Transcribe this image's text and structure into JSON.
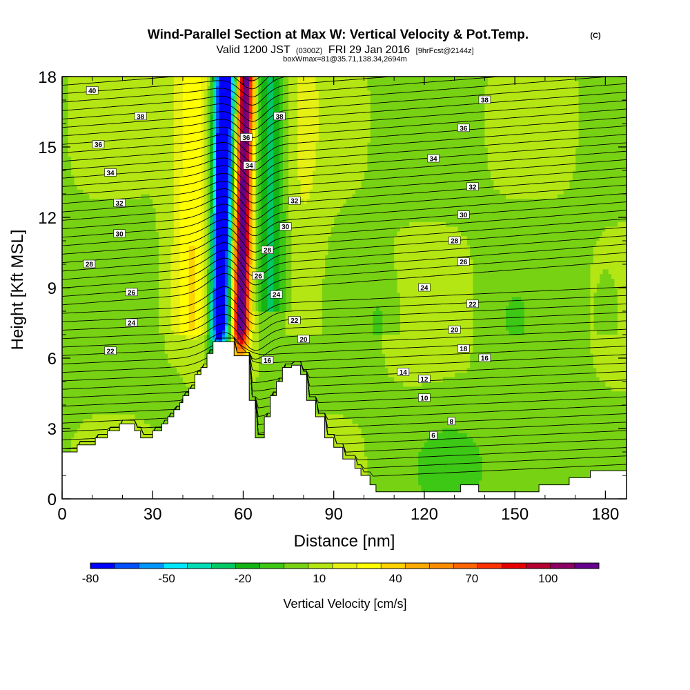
{
  "chart_data": {
    "type": "heatmap",
    "title": "Wind-Parallel Section at Max W: Vertical Velocity & Pot.Temp.",
    "title_mark": "(C)",
    "subtitle": {
      "prefix": "Valid 1200 JST",
      "utc": "(0300Z)",
      "date": "FRI 29 Jan 2016",
      "forecast": "[9hrFcst@2144z]"
    },
    "subtitle2": "boxWmax=81@35.71,138.34,2694m",
    "xlabel": "Distance [nm]",
    "ylabel": "Height [Kft MSL]",
    "xlim": [
      0,
      187
    ],
    "ylim": [
      0,
      18
    ],
    "x_ticks": [
      0,
      30,
      60,
      90,
      120,
      150,
      180
    ],
    "y_ticks": [
      0,
      3,
      6,
      9,
      12,
      15,
      18
    ],
    "colorbar": {
      "label": "Vertical Velocity [cm/s]",
      "ticks": [
        -80,
        -50,
        -20,
        10,
        40,
        70,
        100
      ],
      "min": -80,
      "max": 120,
      "colors": [
        "#0000ff",
        "#0050ff",
        "#0096ff",
        "#00e6ff",
        "#00dcb4",
        "#00c864",
        "#14b414",
        "#3cc814",
        "#78d214",
        "#b4e614",
        "#e6f014",
        "#ffff00",
        "#ffd200",
        "#ffaa00",
        "#ff8c00",
        "#ff6400",
        "#ff3200",
        "#e60000",
        "#b40032",
        "#8c0064",
        "#64008c"
      ]
    },
    "terrain_profile": [
      [
        0,
        2.0
      ],
      [
        5,
        2.3
      ],
      [
        11,
        2.6
      ],
      [
        15,
        2.9
      ],
      [
        19,
        3.2
      ],
      [
        24,
        2.9
      ],
      [
        26,
        2.6
      ],
      [
        30,
        2.9
      ],
      [
        33,
        3.2
      ],
      [
        35,
        3.5
      ],
      [
        37,
        3.8
      ],
      [
        39,
        4.1
      ],
      [
        40,
        4.4
      ],
      [
        42,
        4.7
      ],
      [
        44,
        5.3
      ],
      [
        46,
        5.6
      ],
      [
        48,
        6.2
      ],
      [
        50,
        6.7
      ],
      [
        55,
        6.7
      ],
      [
        57,
        6.1
      ],
      [
        60,
        6.1
      ],
      [
        62,
        4.2
      ],
      [
        64,
        2.6
      ],
      [
        67,
        3.5
      ],
      [
        69,
        4.4
      ],
      [
        71,
        5.0
      ],
      [
        73,
        5.6
      ],
      [
        76,
        5.7
      ],
      [
        79,
        5.3
      ],
      [
        81,
        4.2
      ],
      [
        84,
        3.5
      ],
      [
        87,
        2.6
      ],
      [
        90,
        2.2
      ],
      [
        93,
        1.7
      ],
      [
        97,
        1.3
      ],
      [
        99,
        1.0
      ],
      [
        102,
        0.6
      ],
      [
        104,
        0.3
      ],
      [
        110,
        0.3
      ],
      [
        120,
        0.3
      ],
      [
        130,
        0.3
      ],
      [
        132,
        0.6
      ],
      [
        136,
        0.6
      ],
      [
        138,
        0.3
      ],
      [
        145,
        0.3
      ],
      [
        155,
        0.3
      ],
      [
        158,
        0.6
      ],
      [
        165,
        0.6
      ],
      [
        168,
        0.9
      ],
      [
        175,
        1.2
      ],
      [
        187,
        1.2
      ]
    ],
    "wave": {
      "updraft_x": 59,
      "downdraft_x": 52,
      "peak_updraft": 81
    },
    "theta_contour_labels": [
      {
        "x": 10,
        "y": 17.4,
        "text": "40"
      },
      {
        "x": 26,
        "y": 16.3,
        "text": "38"
      },
      {
        "x": 72,
        "y": 16.3,
        "text": "38"
      },
      {
        "x": 140,
        "y": 17.0,
        "text": "38"
      },
      {
        "x": 12,
        "y": 15.1,
        "text": "36"
      },
      {
        "x": 61,
        "y": 15.4,
        "text": "36"
      },
      {
        "x": 133,
        "y": 15.8,
        "text": "36"
      },
      {
        "x": 16,
        "y": 13.9,
        "text": "34"
      },
      {
        "x": 62,
        "y": 14.2,
        "text": "34"
      },
      {
        "x": 123,
        "y": 14.5,
        "text": "34"
      },
      {
        "x": 19,
        "y": 12.6,
        "text": "32"
      },
      {
        "x": 77,
        "y": 12.7,
        "text": "32"
      },
      {
        "x": 136,
        "y": 13.3,
        "text": "32"
      },
      {
        "x": 19,
        "y": 11.3,
        "text": "30"
      },
      {
        "x": 74,
        "y": 11.6,
        "text": "30"
      },
      {
        "x": 133,
        "y": 12.1,
        "text": "30"
      },
      {
        "x": 9,
        "y": 10.0,
        "text": "28"
      },
      {
        "x": 68,
        "y": 10.6,
        "text": "28"
      },
      {
        "x": 130,
        "y": 11.0,
        "text": "28"
      },
      {
        "x": 23,
        "y": 8.8,
        "text": "26"
      },
      {
        "x": 65,
        "y": 9.5,
        "text": "26"
      },
      {
        "x": 133,
        "y": 10.1,
        "text": "26"
      },
      {
        "x": 23,
        "y": 7.5,
        "text": "24"
      },
      {
        "x": 71,
        "y": 8.7,
        "text": "24"
      },
      {
        "x": 120,
        "y": 9.0,
        "text": "24"
      },
      {
        "x": 16,
        "y": 6.3,
        "text": "22"
      },
      {
        "x": 77,
        "y": 7.6,
        "text": "22"
      },
      {
        "x": 136,
        "y": 8.3,
        "text": "22"
      },
      {
        "x": 80,
        "y": 6.8,
        "text": "20"
      },
      {
        "x": 130,
        "y": 7.2,
        "text": "20"
      },
      {
        "x": 68,
        "y": 5.9,
        "text": "16"
      },
      {
        "x": 133,
        "y": 6.4,
        "text": "18"
      },
      {
        "x": 140,
        "y": 6.0,
        "text": "16"
      },
      {
        "x": 113,
        "y": 5.4,
        "text": "14"
      },
      {
        "x": 120,
        "y": 5.1,
        "text": "12"
      },
      {
        "x": 120,
        "y": 4.3,
        "text": "10"
      },
      {
        "x": 129,
        "y": 3.3,
        "text": "8"
      },
      {
        "x": 123,
        "y": 2.7,
        "text": "6"
      }
    ]
  }
}
